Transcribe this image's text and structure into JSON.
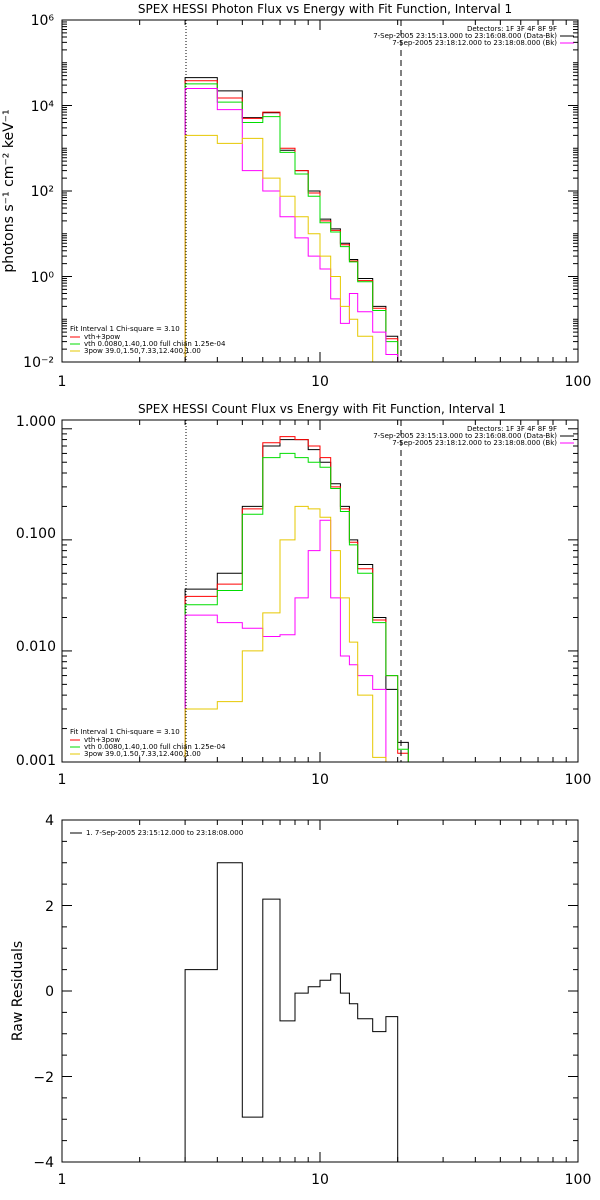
{
  "chart_data": [
    {
      "type": "line",
      "title": "SPEX HESSI Photon Flux vs Energy with Fit Function, Interval 1",
      "xlabel": "",
      "ylabel": "photons s⁻¹ cm⁻² keV⁻¹",
      "xscale": "log",
      "yscale": "log",
      "xlim": [
        1,
        100
      ],
      "ylim": [
        0.01,
        1000000
      ],
      "xticks": [
        1,
        10,
        100
      ],
      "xticklabels": [
        "1",
        "10",
        "100"
      ],
      "yticks": [
        0.01,
        1,
        100,
        10000,
        1000000
      ],
      "yticklabels": [
        "10⁻²",
        "10⁰",
        "10²",
        "10⁴",
        "10⁶"
      ],
      "vlines": [
        {
          "x": 3,
          "style": "dotted"
        },
        {
          "x": 20.5,
          "style": "dashed"
        }
      ],
      "legend_top_right": {
        "lines": [
          "Detectors: 1F 3F 4F 8F 9F",
          "7-Sep-2005 23:15:13.000 to 23:16:08.000 (Data-Bk)",
          "7-Sep-2005 23:18:12.000 to 23:18:08.000 (Bk)"
        ],
        "colors": [
          "#000000",
          "#000000",
          "#ff00ff"
        ]
      },
      "legend_bottom_left": {
        "header": "Fit Interval 1    Chi-square = 3.10",
        "lines": [
          "vth+3pow",
          "vth 0.0080,1.40,1.00  full chian 1.25e-04",
          "3pow 39.0,1.50,7.33,12.400,1.00"
        ],
        "colors": [
          "#ff0000",
          "#00dd00",
          "#e6c800"
        ]
      },
      "bin_edges": [
        3,
        4,
        5,
        6,
        7,
        8,
        9,
        10,
        11,
        12,
        13,
        14,
        16,
        18,
        20,
        22
      ],
      "series": [
        {
          "color": "#000000",
          "values": [
            45000,
            22000,
            5200,
            6800,
            900,
            300,
            100,
            22,
            13,
            6,
            2.5,
            0.9,
            0.2,
            0.04,
            0.01
          ]
        },
        {
          "color": "#ff0000",
          "values": [
            38000,
            15000,
            5000,
            7000,
            1000,
            300,
            90,
            20,
            12,
            5.5,
            2.3,
            0.8,
            0.18,
            0.035,
            0.01
          ]
        },
        {
          "color": "#00dd00",
          "values": [
            32000,
            12000,
            4000,
            5500,
            800,
            250,
            75,
            18,
            11,
            5,
            2.2,
            0.75,
            0.16,
            0.03,
            0.01
          ]
        },
        {
          "color": "#ff00ff",
          "values": [
            25000,
            8000,
            300,
            100,
            25,
            8,
            3,
            1.5,
            0.3,
            0.08,
            0.4,
            0.15,
            0.05,
            0.015
          ]
        },
        {
          "color": "#e6c800",
          "values": [
            2000,
            1300,
            1700,
            200,
            75,
            25,
            10,
            3,
            1,
            0.2,
            0.1,
            0.04,
            0.01
          ]
        }
      ]
    },
    {
      "type": "line",
      "title": "SPEX HESSI Count Flux vs Energy with Fit Function, Interval 1",
      "xlabel": "",
      "ylabel": "",
      "xscale": "log",
      "yscale": "log",
      "xlim": [
        1,
        100
      ],
      "ylim": [
        0.001,
        1.2
      ],
      "xticks": [
        1,
        10,
        100
      ],
      "xticklabels": [
        "1",
        "10",
        "100"
      ],
      "yticks": [
        0.001,
        0.01,
        0.1,
        1
      ],
      "yticklabels": [
        "0.001",
        "0.010",
        "0.100",
        "1.000"
      ],
      "vlines": [
        {
          "x": 3,
          "style": "dotted"
        },
        {
          "x": 20.5,
          "style": "dashed"
        }
      ],
      "legend_top_right": {
        "lines": [
          "Detectors: 1F 3F 4F 8F 9F",
          "7-Sep-2005 23:15:13.000 to 23:16:08.000 (Data-Bk)",
          "7-Sep-2005 23:18:12.000 to 23:18:08.000 (Bk)"
        ],
        "colors": [
          "#000000",
          "#000000",
          "#ff00ff"
        ]
      },
      "legend_bottom_left": {
        "header": "Fit Interval 1    Chi-square = 3.10",
        "lines": [
          "vth+3pow",
          "vth 0.0080,1.40,1.00  full chian 1.25e-04",
          "3pow 39.0,1.50,7.33,12.400,1.00"
        ],
        "colors": [
          "#ff0000",
          "#00dd00",
          "#e6c800"
        ]
      },
      "bin_edges": [
        3,
        4,
        5,
        6,
        7,
        8,
        9,
        10,
        11,
        12,
        13,
        14,
        16,
        18,
        20,
        22
      ],
      "series": [
        {
          "color": "#000000",
          "values": [
            0.036,
            0.05,
            0.2,
            0.7,
            0.8,
            0.8,
            0.65,
            0.5,
            0.32,
            0.2,
            0.1,
            0.06,
            0.02,
            0.0045,
            0.0015
          ]
        },
        {
          "color": "#ff0000",
          "values": [
            0.031,
            0.04,
            0.19,
            0.75,
            0.85,
            0.8,
            0.7,
            0.55,
            0.3,
            0.19,
            0.095,
            0.055,
            0.019,
            0.006,
            0.0012
          ]
        },
        {
          "color": "#00dd00",
          "values": [
            0.026,
            0.035,
            0.17,
            0.55,
            0.6,
            0.55,
            0.5,
            0.45,
            0.29,
            0.18,
            0.09,
            0.05,
            0.018,
            0.006,
            0.0013
          ]
        },
        {
          "color": "#ff00ff",
          "values": [
            0.021,
            0.018,
            0.016,
            0.0135,
            0.014,
            0.03,
            0.08,
            0.15,
            0.03,
            0.009,
            0.0075,
            0.006,
            0.0045
          ]
        },
        {
          "color": "#e6c800",
          "values": [
            0.003,
            0.0035,
            0.01,
            0.022,
            0.1,
            0.2,
            0.19,
            0.16,
            0.08,
            0.03,
            0.012,
            0.004,
            0.0011
          ]
        }
      ]
    },
    {
      "type": "line",
      "title": "",
      "xlabel": "",
      "ylabel": "Raw Residuals",
      "xscale": "log",
      "yscale": "linear",
      "xlim": [
        1,
        100
      ],
      "ylim": [
        -4,
        4
      ],
      "xticks": [
        1,
        10,
        100
      ],
      "xticklabels": [
        "1",
        "10",
        "100"
      ],
      "yticks": [
        -4,
        -2,
        0,
        2,
        4
      ],
      "yticklabels": [
        "−4",
        "−2",
        "0",
        "2",
        "4"
      ],
      "legend": "1.  7-Sep-2005 23:15:12.000 to 23:18:08.000",
      "bin_edges": [
        3,
        4,
        5,
        6,
        7,
        8,
        9,
        10,
        11,
        12,
        13,
        14,
        16,
        18,
        20
      ],
      "series": [
        {
          "color": "#000000",
          "values": [
            0.5,
            3.0,
            -2.95,
            2.15,
            -0.7,
            -0.05,
            0.1,
            0.25,
            0.4,
            -0.05,
            -0.3,
            -0.65,
            -0.95,
            -0.6
          ]
        }
      ]
    }
  ]
}
